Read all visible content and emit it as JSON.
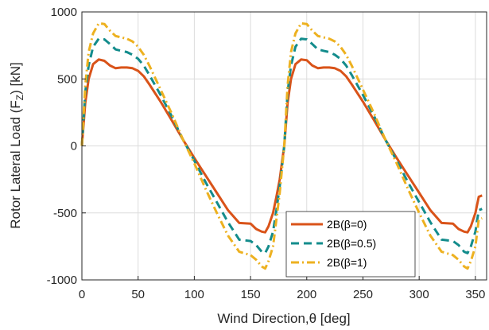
{
  "chart_data": {
    "type": "line",
    "xlabel": "Wind Direction,θ [deg]",
    "ylabel": "Rotor Lateral Load (F_Z) [kN]",
    "ylabel_main": "Rotor Lateral Load (F",
    "ylabel_sub": "Z",
    "ylabel_tail": ") [kN]",
    "xlim": [
      0,
      360
    ],
    "ylim": [
      -1000,
      1000
    ],
    "x_ticks": [
      "0",
      "50",
      "100",
      "150",
      "200",
      "250",
      "300",
      "350"
    ],
    "y_ticks": [
      "-1000",
      "-500",
      "0",
      "500",
      "1000"
    ],
    "grid": true,
    "legend_position": "bottom-right",
    "x": [
      0,
      3,
      6,
      10,
      15,
      20,
      25,
      30,
      35,
      40,
      45,
      50,
      55,
      60,
      70,
      80,
      90,
      100,
      110,
      120,
      130,
      140,
      150,
      155,
      160,
      163,
      166,
      170,
      173,
      176,
      178,
      180,
      183,
      186,
      190,
      195,
      200,
      205,
      210,
      215,
      220,
      225,
      230,
      235,
      240,
      250,
      260,
      270,
      280,
      290,
      300,
      310,
      320,
      330,
      335,
      340,
      343,
      346,
      350,
      353,
      356
    ],
    "series": [
      {
        "name": "2B(β=0)",
        "color": "#D95319",
        "dash": "solid",
        "y": [
          0,
          320,
          500,
          610,
          645,
          635,
          600,
          580,
          585,
          585,
          580,
          560,
          520,
          460,
          330,
          190,
          45,
          -90,
          -220,
          -350,
          -480,
          -575,
          -580,
          -620,
          -640,
          -645,
          -600,
          -500,
          -380,
          -250,
          -120,
          0,
          320,
          500,
          610,
          645,
          640,
          600,
          580,
          585,
          585,
          580,
          560,
          520,
          460,
          330,
          190,
          45,
          -90,
          -220,
          -350,
          -480,
          -575,
          -580,
          -620,
          -640,
          -645,
          -600,
          -500,
          -380,
          -370
        ]
      },
      {
        "name": "2B(β=0.5)",
        "color": "#138C8C",
        "dash": "dashed",
        "y": [
          0,
          400,
          600,
          740,
          800,
          795,
          760,
          720,
          710,
          700,
          680,
          650,
          600,
          530,
          380,
          220,
          45,
          -110,
          -270,
          -420,
          -570,
          -700,
          -710,
          -740,
          -790,
          -800,
          -750,
          -640,
          -480,
          -300,
          -150,
          0,
          400,
          600,
          740,
          800,
          795,
          760,
          720,
          710,
          700,
          680,
          650,
          600,
          530,
          380,
          220,
          45,
          -110,
          -270,
          -420,
          -570,
          -700,
          -710,
          -740,
          -790,
          -800,
          -750,
          -640,
          -480,
          -470
        ]
      },
      {
        "name": "2B(β=1)",
        "color": "#EDB120",
        "dash": "dashdot",
        "y": [
          0,
          450,
          700,
          840,
          915,
          910,
          860,
          820,
          810,
          800,
          780,
          740,
          680,
          600,
          420,
          240,
          45,
          -130,
          -320,
          -500,
          -670,
          -790,
          -815,
          -850,
          -900,
          -915,
          -860,
          -750,
          -550,
          -350,
          -170,
          0,
          450,
          700,
          840,
          915,
          910,
          860,
          820,
          810,
          800,
          780,
          740,
          680,
          600,
          420,
          240,
          45,
          -130,
          -320,
          -500,
          -670,
          -790,
          -815,
          -850,
          -900,
          -915,
          -860,
          -750,
          -550,
          -540
        ]
      }
    ]
  }
}
